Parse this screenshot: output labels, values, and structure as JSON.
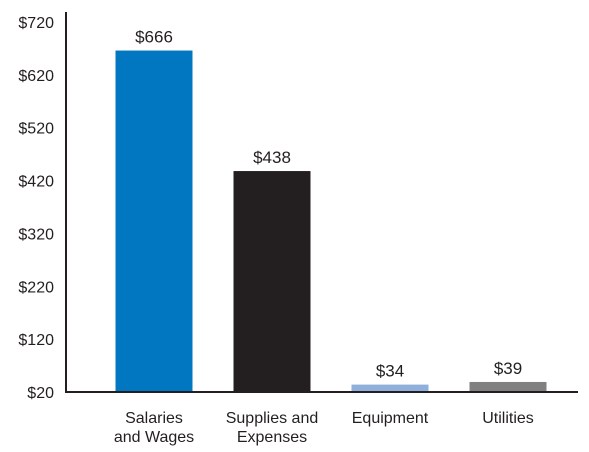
{
  "chart_data": {
    "type": "bar",
    "title": "",
    "xlabel": "",
    "ylabel": "",
    "categories": [
      [
        "Salaries",
        "and Wages"
      ],
      [
        "Supplies and",
        "Expenses"
      ],
      [
        "Equipment"
      ],
      [
        "Utilities"
      ]
    ],
    "values": [
      666,
      438,
      34,
      39
    ],
    "data_labels": [
      "$666",
      "$438",
      "$34",
      "$39"
    ],
    "colors": [
      "#0077c0",
      "#231f20",
      "#8fb0dd",
      "#808080"
    ],
    "ylim": [
      20,
      720
    ],
    "yticks": [
      20,
      120,
      220,
      320,
      420,
      520,
      620,
      720
    ],
    "ytick_labels": [
      "$20",
      "$120",
      "$220",
      "$320",
      "$420",
      "$520",
      "$620",
      "$720"
    ],
    "grid": false,
    "legend": "none"
  }
}
